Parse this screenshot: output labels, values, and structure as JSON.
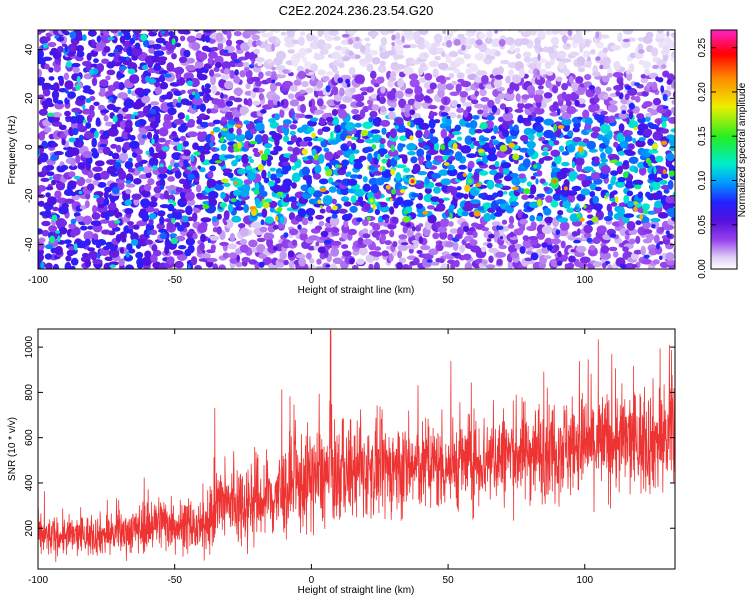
{
  "title": "C2E2.2024.236.23.54.G20",
  "colors": {
    "snr_line": "#ee3333",
    "colormap": [
      "#ffffff",
      "#ddccf5",
      "#9944ee",
      "#5511dd",
      "#2222ff",
      "#0099ff",
      "#00eecc",
      "#22ee22",
      "#eeee00",
      "#ff8800",
      "#ff0000",
      "#ff22cc"
    ]
  },
  "chart_data": [
    {
      "type": "heatmap",
      "xlabel": "Height of straight line (km)",
      "ylabel": "Frequency (Hz)",
      "xlim": [
        -100,
        133
      ],
      "ylim": [
        -50,
        48
      ],
      "x_ticks": [
        -100,
        -50,
        0,
        50,
        100
      ],
      "y_ticks": [
        -40,
        -20,
        0,
        20,
        40
      ],
      "grid": false,
      "colorbar": {
        "label": "Normalized spectral amplitude",
        "range": [
          0,
          0.27
        ],
        "ticks": [
          "0.00",
          "0.05",
          "0.10",
          "0.15",
          "0.20",
          "0.25"
        ]
      },
      "regions": [
        {
          "x": [
            -100,
            -40
          ],
          "y": [
            -50,
            48
          ],
          "typical_amplitude": 0.05
        },
        {
          "x": [
            -40,
            133
          ],
          "y": [
            -30,
            10
          ],
          "typical_amplitude": 0.08
        },
        {
          "x": [
            -20,
            133
          ],
          "y": [
            28,
            48
          ],
          "typical_amplitude": 0.01
        }
      ],
      "peaks": [
        {
          "x": 37,
          "y": -14,
          "amplitude": 0.26
        },
        {
          "x": 89,
          "y": -14,
          "amplitude": 0.22
        },
        {
          "x": 22,
          "y": -22,
          "amplitude": 0.18
        },
        {
          "x": 58,
          "y": -14,
          "amplitude": 0.16
        }
      ]
    },
    {
      "type": "line",
      "xlabel": "Height of straight line (km)",
      "ylabel": "SNR (10 * v/v)",
      "xlim": [
        -100,
        133
      ],
      "ylim": [
        20,
        1080
      ],
      "x_ticks": [
        -100,
        -50,
        0,
        50,
        100
      ],
      "y_ticks": [
        200,
        400,
        600,
        800,
        1000
      ],
      "grid": false,
      "series": [
        {
          "trend": [
            {
              "x": -100,
              "mean": 160,
              "spread": 60
            },
            {
              "x": -70,
              "mean": 175,
              "spread": 65
            },
            {
              "x": -55,
              "mean": 230,
              "spread": 90
            },
            {
              "x": -40,
              "mean": 190,
              "spread": 70
            },
            {
              "x": -35,
              "mean": 300,
              "spread": 130
            },
            {
              "x": -15,
              "mean": 330,
              "spread": 140
            },
            {
              "x": 0,
              "mean": 420,
              "spread": 160
            },
            {
              "x": 15,
              "mean": 450,
              "spread": 150
            },
            {
              "x": 50,
              "mean": 480,
              "spread": 140
            },
            {
              "x": 90,
              "mean": 560,
              "spread": 160
            },
            {
              "x": 133,
              "mean": 600,
              "spread": 170
            }
          ],
          "peak": {
            "x": 7,
            "y": 1075
          }
        }
      ]
    }
  ]
}
